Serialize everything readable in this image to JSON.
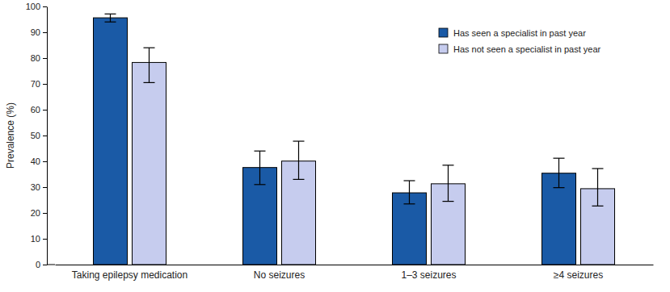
{
  "chart_data": {
    "type": "bar",
    "y_label": "Prevalence (%)",
    "categories": [
      "Taking epilepsy medication",
      "No seizures",
      "1–3 seizures",
      "≥4 seizures"
    ],
    "series": [
      {
        "name": "Has seen a specialist in past year",
        "color": "#1a5aa6",
        "values": [
          95.6,
          37.6,
          27.8,
          35.4
        ],
        "lower": [
          94.0,
          31.0,
          23.5,
          29.8
        ],
        "upper": [
          97.1,
          44.0,
          32.5,
          41.2
        ]
      },
      {
        "name": "Has not seen a specialist in past year",
        "color": "#c6ccee",
        "values": [
          78.3,
          40.1,
          31.3,
          29.4
        ],
        "lower": [
          70.5,
          33.0,
          24.5,
          22.7
        ],
        "upper": [
          84.0,
          47.8,
          38.5,
          37.2
        ]
      }
    ],
    "ylim": [
      0,
      100
    ],
    "yticks": [
      0,
      10,
      20,
      30,
      40,
      50,
      60,
      70,
      80,
      90,
      100
    ],
    "legend": "upper right",
    "grid": false
  }
}
